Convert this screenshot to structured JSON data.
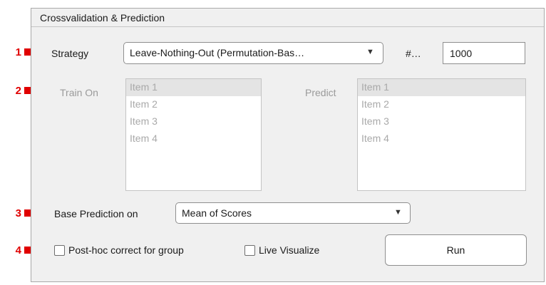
{
  "panel": {
    "title": "Crossvalidation & Prediction"
  },
  "markers": [
    "1",
    "2",
    "3",
    "4"
  ],
  "strategy": {
    "label": "Strategy",
    "value": "Leave-Nothing-Out (Permutation-Bas…",
    "arrow": "▼"
  },
  "count": {
    "label": "#…",
    "value": "1000"
  },
  "train_on": {
    "label": "Train On",
    "items": [
      "Item 1",
      "Item 2",
      "Item 3",
      "Item 4"
    ],
    "selected_index": 0
  },
  "predict": {
    "label": "Predict",
    "items": [
      "Item 1",
      "Item 2",
      "Item 3",
      "Item 4"
    ],
    "selected_index": 0
  },
  "base_prediction": {
    "label": "Base Prediction on",
    "value": "Mean of Scores",
    "arrow": "▼"
  },
  "posthoc": {
    "label": "Post-hoc correct for group",
    "checked": false
  },
  "live_visualize": {
    "label": "Live Visualize",
    "checked": false
  },
  "run_button": {
    "label": "Run"
  },
  "colors": {
    "marker_red": "#e00000",
    "panel_bg": "#f0f0f0",
    "disabled_text": "#9a9a9a"
  },
  "icons": {
    "marker": "right-arrow-icon",
    "dropdown": "triangle-down-icon"
  }
}
